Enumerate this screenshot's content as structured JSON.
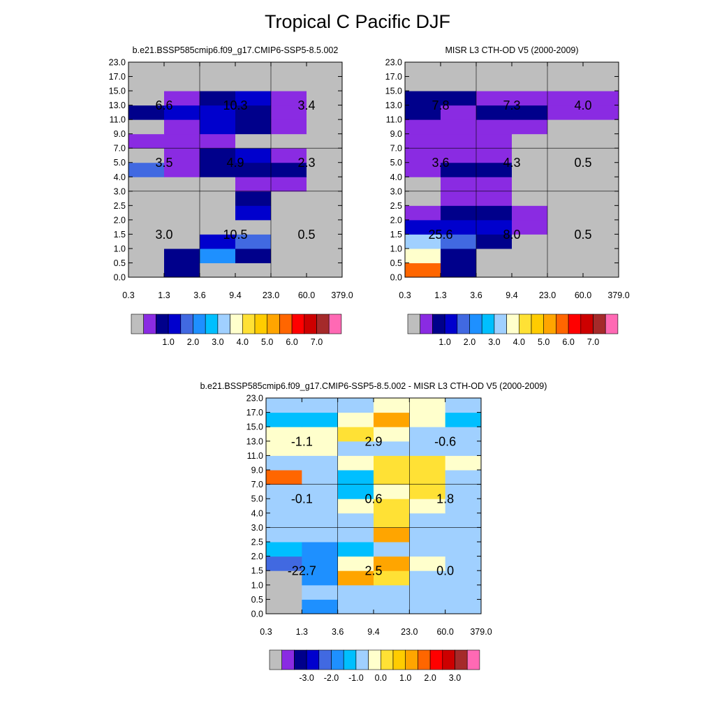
{
  "title": "Tropical C Pacific DJF",
  "palettes": {
    "abs": [
      "#bebebe",
      "#8a2be2",
      "#00008b",
      "#0000cd",
      "#4169e1",
      "#1e90ff",
      "#00bfff",
      "#a0d0ff",
      "#ffffcc",
      "#ffe135",
      "#ffcc00",
      "#ffa500",
      "#ff6600",
      "#ff0000",
      "#cd0000",
      "#a52a2a",
      "#ff69b4"
    ],
    "diff": [
      "#bebebe",
      "#8a2be2",
      "#00008b",
      "#0000cd",
      "#4169e1",
      "#1e90ff",
      "#00bfff",
      "#a0d0ff",
      "#ffffcc",
      "#ffe135",
      "#ffcc00",
      "#ffa500",
      "#ff6600",
      "#ff0000",
      "#cd0000",
      "#a52a2a",
      "#ff69b4"
    ]
  },
  "chart_data": [
    {
      "type": "heatmap",
      "title": "b.e21.BSSP585cmip6.f09_g17.CMIP6-SSP5-8.5.002",
      "x_ticks": [
        "0.3",
        "1.3",
        "3.6",
        "9.4",
        "23.0",
        "60.0",
        "379.0"
      ],
      "y_ticks": [
        "0.0",
        "0.5",
        "1.0",
        "1.5",
        "2.0",
        "2.5",
        "3.0",
        "4.0",
        "5.0",
        "7.0",
        "9.0",
        "11.0",
        "13.0",
        "15.0",
        "17.0",
        "23.0"
      ],
      "grid": true,
      "cells_colors_by_row_bottom_up": [
        [
          0,
          2,
          0,
          0,
          0,
          0
        ],
        [
          0,
          2,
          5,
          2,
          0,
          0
        ],
        [
          0,
          0,
          3,
          4,
          0,
          0
        ],
        [
          0,
          0,
          0,
          0,
          0,
          0
        ],
        [
          0,
          0,
          0,
          3,
          0,
          0
        ],
        [
          0,
          0,
          0,
          2,
          0,
          0
        ],
        [
          0,
          0,
          0,
          1,
          1,
          0
        ],
        [
          4,
          1,
          2,
          2,
          2,
          0
        ],
        [
          0,
          1,
          2,
          3,
          1,
          0
        ],
        [
          1,
          1,
          1,
          0,
          0,
          0
        ],
        [
          0,
          1,
          3,
          2,
          1,
          0
        ],
        [
          2,
          3,
          3,
          2,
          1,
          0
        ],
        [
          0,
          1,
          2,
          3,
          1,
          0
        ],
        [
          0,
          0,
          0,
          0,
          0,
          0
        ],
        [
          0,
          0,
          0,
          0,
          0,
          0
        ]
      ],
      "annotations": [
        {
          "label": "6.6",
          "col": "0.3-3.6",
          "row": "7.0-23.0"
        },
        {
          "label": "10.3",
          "col": "3.6-23.0",
          "row": "7.0-23.0"
        },
        {
          "label": "3.4",
          "col": "23.0-379.0",
          "row": "7.0-23.0"
        },
        {
          "label": "3.5",
          "col": "0.3-3.6",
          "row": "3.0-7.0"
        },
        {
          "label": "4.9",
          "col": "3.6-23.0",
          "row": "3.0-7.0"
        },
        {
          "label": "2.3",
          "col": "23.0-379.0",
          "row": "3.0-7.0"
        },
        {
          "label": "3.0",
          "col": "0.3-3.6",
          "row": "0.0-3.0"
        },
        {
          "label": "10.5",
          "col": "3.6-23.0",
          "row": "0.0-3.0"
        },
        {
          "label": "0.5",
          "col": "23.0-379.0",
          "row": "0.0-3.0"
        }
      ],
      "colorbar_labels": [
        "1.0",
        "2.0",
        "3.0",
        "4.0",
        "5.0",
        "6.0",
        "7.0"
      ],
      "palette": "abs"
    },
    {
      "type": "heatmap",
      "title": "MISR L3 CTH-OD V5 (2000-2009)",
      "x_ticks": [
        "0.3",
        "1.3",
        "3.6",
        "9.4",
        "23.0",
        "60.0",
        "379.0"
      ],
      "y_ticks": [
        "0.0",
        "0.5",
        "1.0",
        "1.5",
        "2.0",
        "2.5",
        "3.0",
        "4.0",
        "5.0",
        "7.0",
        "9.0",
        "11.0",
        "13.0",
        "15.0",
        "17.0",
        "23.0"
      ],
      "grid": true,
      "cells_colors_by_row_bottom_up": [
        [
          12,
          2,
          0,
          0,
          0,
          0
        ],
        [
          8,
          2,
          0,
          0,
          0,
          0
        ],
        [
          7,
          4,
          2,
          0,
          0,
          0
        ],
        [
          3,
          3,
          3,
          1,
          0,
          0
        ],
        [
          1,
          2,
          2,
          1,
          0,
          0
        ],
        [
          0,
          1,
          1,
          0,
          0,
          0
        ],
        [
          0,
          1,
          1,
          0,
          0,
          0
        ],
        [
          1,
          2,
          2,
          0,
          0,
          0
        ],
        [
          1,
          1,
          1,
          0,
          0,
          0
        ],
        [
          1,
          1,
          1,
          0,
          0,
          0
        ],
        [
          1,
          1,
          1,
          1,
          0,
          0
        ],
        [
          2,
          1,
          2,
          2,
          1,
          1
        ],
        [
          2,
          2,
          1,
          1,
          1,
          1
        ],
        [
          0,
          0,
          0,
          0,
          0,
          0
        ],
        [
          0,
          0,
          0,
          0,
          0,
          0
        ]
      ],
      "annotations": [
        {
          "label": "7.8",
          "col": "0.3-3.6",
          "row": "7.0-23.0"
        },
        {
          "label": "7.3",
          "col": "3.6-23.0",
          "row": "7.0-23.0"
        },
        {
          "label": "4.0",
          "col": "23.0-379.0",
          "row": "7.0-23.0"
        },
        {
          "label": "3.6",
          "col": "0.3-3.6",
          "row": "3.0-7.0"
        },
        {
          "label": "4.3",
          "col": "3.6-23.0",
          "row": "3.0-7.0"
        },
        {
          "label": "0.5",
          "col": "23.0-379.0",
          "row": "3.0-7.0"
        },
        {
          "label": "25.6",
          "col": "0.3-3.6",
          "row": "0.0-3.0"
        },
        {
          "label": "8.0",
          "col": "3.6-23.0",
          "row": "0.0-3.0"
        },
        {
          "label": "0.5",
          "col": "23.0-379.0",
          "row": "0.0-3.0"
        }
      ],
      "colorbar_labels": [
        "1.0",
        "2.0",
        "3.0",
        "4.0",
        "5.0",
        "6.0",
        "7.0"
      ],
      "palette": "abs"
    },
    {
      "type": "heatmap",
      "title": "b.e21.BSSP585cmip6.f09_g17.CMIP6-SSP5-8.5.002 - MISR L3 CTH-OD V5 (2000-2009)",
      "x_ticks": [
        "0.3",
        "1.3",
        "3.6",
        "9.4",
        "23.0",
        "60.0",
        "379.0"
      ],
      "y_ticks": [
        "0.0",
        "0.5",
        "1.0",
        "1.5",
        "2.0",
        "2.5",
        "3.0",
        "4.0",
        "5.0",
        "7.0",
        "9.0",
        "11.0",
        "13.0",
        "15.0",
        "17.0",
        "23.0"
      ],
      "grid": true,
      "cells_colors_by_row_bottom_up": [
        [
          0,
          5,
          7,
          7,
          7,
          7
        ],
        [
          0,
          7,
          7,
          7,
          7,
          7
        ],
        [
          0,
          5,
          11,
          9,
          7,
          7
        ],
        [
          4,
          5,
          8,
          11,
          8,
          7
        ],
        [
          6,
          5,
          6,
          7,
          7,
          7
        ],
        [
          7,
          7,
          7,
          11,
          7,
          7
        ],
        [
          7,
          7,
          7,
          9,
          7,
          7
        ],
        [
          7,
          7,
          8,
          9,
          8,
          7
        ],
        [
          7,
          7,
          6,
          8,
          9,
          7
        ],
        [
          12,
          7,
          6,
          9,
          9,
          7
        ],
        [
          7,
          7,
          8,
          9,
          9,
          8
        ],
        [
          8,
          8,
          7,
          7,
          7,
          7
        ],
        [
          8,
          8,
          9,
          8,
          7,
          7
        ],
        [
          6,
          6,
          8,
          11,
          8,
          6
        ],
        [
          7,
          7,
          7,
          8,
          8,
          7
        ]
      ],
      "annotations": [
        {
          "label": "-1.1",
          "col": "0.3-3.6",
          "row": "7.0-23.0"
        },
        {
          "label": "2.9",
          "col": "3.6-23.0",
          "row": "7.0-23.0"
        },
        {
          "label": "-0.6",
          "col": "23.0-379.0",
          "row": "7.0-23.0"
        },
        {
          "label": "-0.1",
          "col": "0.3-3.6",
          "row": "3.0-7.0"
        },
        {
          "label": "0.6",
          "col": "3.6-23.0",
          "row": "3.0-7.0"
        },
        {
          "label": "1.8",
          "col": "23.0-379.0",
          "row": "3.0-7.0"
        },
        {
          "label": "-22.7",
          "col": "0.3-3.6",
          "row": "0.0-3.0"
        },
        {
          "label": "2.5",
          "col": "3.6-23.0",
          "row": "0.0-3.0"
        },
        {
          "label": "0.0",
          "col": "23.0-379.0",
          "row": "0.0-3.0"
        }
      ],
      "colorbar_labels": [
        "-3.0",
        "-2.0",
        "-1.0",
        "0.0",
        "1.0",
        "2.0",
        "3.0"
      ],
      "palette": "diff"
    }
  ]
}
